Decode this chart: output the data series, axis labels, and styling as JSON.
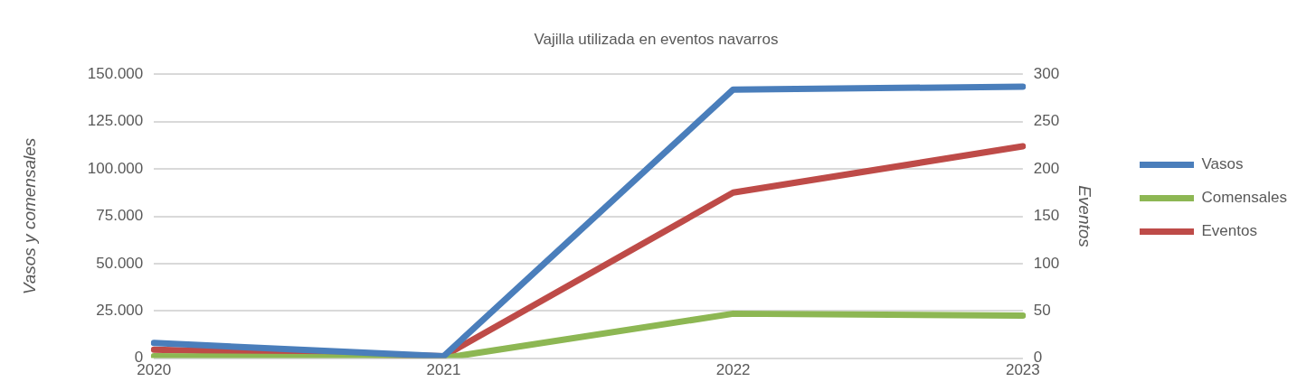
{
  "chart_data": {
    "type": "line",
    "title": "Vajilla utilizada en eventos navarros",
    "ylabel": "Vasos y comensales",
    "y2label": "Eventos",
    "categories": [
      "2020",
      "2021",
      "2022",
      "2023"
    ],
    "series": [
      {
        "name": "Vasos",
        "color": "#4a7ebb",
        "values": [
          8000,
          1000,
          142000,
          143500
        ]
      },
      {
        "name": "Comensales",
        "color": "#8db753",
        "values": [
          1000,
          0,
          23500,
          22500
        ]
      },
      {
        "name": "Eventos",
        "color": "#be4b48",
        "values": [
          9,
          2,
          175,
          224
        ],
        "axis": "y2"
      }
    ],
    "ylim": [
      0,
      150000
    ],
    "yticks": [
      0,
      {
        "value": 25000,
        "label": "25.000"
      },
      {
        "value": 50000,
        "label": "50.000"
      },
      {
        "value": 75000,
        "label": "75.000"
      },
      {
        "value": 100000,
        "label": "100.000"
      },
      {
        "value": 125000,
        "label": "125.000"
      },
      {
        "value": 150000,
        "label": "150.000"
      }
    ],
    "y2lim": [
      0,
      300
    ],
    "y2ticks": [
      0,
      50,
      100,
      150,
      200,
      250,
      300
    ],
    "grid": "y",
    "legend": "right",
    "marker": "none",
    "line_style": "solid"
  }
}
